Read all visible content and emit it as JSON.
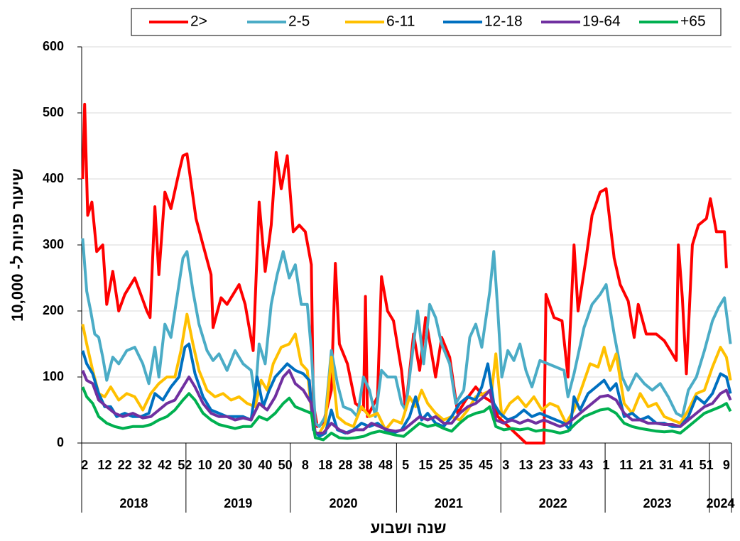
{
  "chart_data": {
    "type": "line",
    "y_label": "שיעור פניות ל- 10,000",
    "x_label": "שנה ושבוע",
    "ylim": [
      0,
      600
    ],
    "yticks": [
      0,
      100,
      200,
      300,
      400,
      500,
      600
    ],
    "grid": true,
    "xlim": [
      -0.5,
      323.5
    ],
    "xticks": [
      {
        "value": 1,
        "label": "2"
      },
      {
        "value": 11,
        "label": "12"
      },
      {
        "value": 21,
        "label": "22"
      },
      {
        "value": 31,
        "label": "32"
      },
      {
        "value": 41,
        "label": "42"
      },
      {
        "value": 51,
        "label": "52"
      },
      {
        "value": 61,
        "label": "10"
      },
      {
        "value": 71,
        "label": "20"
      },
      {
        "value": 81,
        "label": "30"
      },
      {
        "value": 91,
        "label": "40"
      },
      {
        "value": 101,
        "label": "50"
      },
      {
        "value": 111,
        "label": "8"
      },
      {
        "value": 121,
        "label": "18"
      },
      {
        "value": 131,
        "label": "28"
      },
      {
        "value": 141,
        "label": "38"
      },
      {
        "value": 151,
        "label": "48"
      },
      {
        "value": 161,
        "label": "5"
      },
      {
        "value": 171,
        "label": "15"
      },
      {
        "value": 181,
        "label": "25"
      },
      {
        "value": 191,
        "label": "35"
      },
      {
        "value": 201,
        "label": "45"
      },
      {
        "value": 211,
        "label": "3"
      },
      {
        "value": 221,
        "label": "13"
      },
      {
        "value": 231,
        "label": "23"
      },
      {
        "value": 241,
        "label": "33"
      },
      {
        "value": 251,
        "label": "43"
      },
      {
        "value": 261,
        "label": "1"
      },
      {
        "value": 271,
        "label": "11"
      },
      {
        "value": 281,
        "label": "21"
      },
      {
        "value": 291,
        "label": "31"
      },
      {
        "value": 301,
        "label": "41"
      },
      {
        "value": 311,
        "label": "51"
      },
      {
        "value": 321,
        "label": "9"
      }
    ],
    "year_groups": [
      {
        "label": "2018",
        "weeks": 52
      },
      {
        "label": "2019",
        "weeks": 52
      },
      {
        "label": "2020",
        "weeks": 53
      },
      {
        "label": "2021",
        "weeks": 52
      },
      {
        "label": "2022",
        "weeks": 52
      },
      {
        "label": "2023",
        "weeks": 52
      },
      {
        "label": "2024",
        "weeks": 11
      }
    ],
    "legend": "top-right",
    "series": [
      {
        "name": "2>",
        "color": "#ff0000",
        "x": [
          0,
          1,
          2.5,
          4.6,
          7,
          10,
          12,
          15,
          18,
          21,
          26,
          32,
          33.6,
          36,
          38,
          41,
          44,
          48,
          50,
          52,
          54,
          56.5,
          60,
          64,
          65,
          69,
          72,
          78,
          81,
          85,
          88,
          91,
          94,
          96.5,
          99,
          102,
          105,
          108,
          111,
          114,
          115,
          117,
          120,
          124,
          126,
          128,
          132,
          136,
          140,
          141,
          142,
          147,
          149,
          152,
          155,
          159,
          161,
          165,
          168,
          171,
          176,
          179,
          183,
          187,
          191,
          196,
          200,
          205,
          207,
          214,
          221,
          230,
          231,
          235,
          239,
          242,
          245,
          247,
          251,
          254,
          258,
          261,
          265,
          268,
          272,
          275,
          277,
          281,
          286,
          290,
          293,
          296,
          297,
          299,
          301,
          304,
          307,
          311,
          313,
          316,
          320,
          321
        ],
        "values": [
          400,
          513,
          345,
          365,
          290,
          300,
          210,
          260,
          200,
          225,
          250,
          200,
          190,
          358,
          255,
          380,
          355,
          410,
          435,
          438,
          395,
          340,
          300,
          255,
          175,
          220,
          210,
          240,
          210,
          140,
          365,
          260,
          330,
          440,
          385,
          435,
          320,
          330,
          320,
          270,
          60,
          25,
          30,
          80,
          272,
          150,
          120,
          60,
          50,
          222,
          40,
          70,
          252,
          200,
          185,
          110,
          50,
          165,
          110,
          190,
          100,
          160,
          130,
          45,
          65,
          85,
          70,
          60,
          40,
          20,
          0,
          0,
          225,
          190,
          185,
          100,
          300,
          200,
          280,
          345,
          380,
          385,
          280,
          240,
          215,
          160,
          210,
          165,
          165,
          155,
          140,
          125,
          300,
          220,
          105,
          300,
          330,
          340,
          370,
          320,
          320,
          265
        ]
      },
      {
        "name": "2-5",
        "color": "#4bacc6",
        "x": [
          0,
          2,
          4,
          6,
          8,
          10,
          12,
          15,
          18,
          22,
          26,
          30,
          33,
          36,
          38,
          41,
          44,
          47,
          50,
          52,
          55,
          58,
          62,
          65,
          68,
          72,
          76,
          80,
          84,
          86,
          88,
          91,
          94,
          97,
          100,
          103,
          106,
          109,
          112,
          114,
          116,
          118,
          121,
          124,
          127,
          130,
          134,
          137,
          140,
          143,
          146,
          149,
          152,
          156,
          159,
          161,
          163,
          167,
          170,
          173,
          176,
          179,
          183,
          186,
          190,
          193,
          196,
          199,
          203,
          205,
          207,
          209,
          212,
          215,
          218,
          221,
          224,
          228,
          232,
          236,
          240,
          242,
          245,
          250,
          254,
          258,
          261,
          265,
          269,
          272,
          276,
          280,
          284,
          288,
          292,
          296,
          299,
          302,
          306,
          310,
          314,
          317,
          320,
          323
        ],
        "values": [
          310,
          230,
          200,
          165,
          160,
          130,
          95,
          130,
          120,
          140,
          145,
          120,
          90,
          145,
          100,
          180,
          160,
          220,
          280,
          290,
          230,
          180,
          140,
          125,
          135,
          110,
          140,
          120,
          110,
          70,
          150,
          120,
          210,
          255,
          290,
          250,
          270,
          210,
          210,
          140,
          30,
          25,
          40,
          140,
          90,
          55,
          50,
          40,
          100,
          80,
          40,
          110,
          100,
          100,
          60,
          50,
          100,
          200,
          120,
          210,
          190,
          150,
          120,
          60,
          80,
          160,
          180,
          145,
          230,
          290,
          200,
          100,
          140,
          125,
          150,
          110,
          85,
          125,
          120,
          115,
          110,
          70,
          105,
          175,
          210,
          225,
          240,
          165,
          100,
          80,
          105,
          90,
          80,
          90,
          70,
          45,
          40,
          80,
          100,
          140,
          185,
          205,
          220,
          150
        ]
      },
      {
        "name": "6-11",
        "color": "#ffc000",
        "x": [
          0,
          2,
          5,
          8,
          11,
          14,
          18,
          22,
          26,
          30,
          34,
          38,
          42,
          46,
          49,
          52,
          55,
          58,
          62,
          66,
          70,
          74,
          78,
          82,
          86,
          89,
          92,
          95,
          99,
          103,
          106,
          109,
          112,
          114,
          116,
          118,
          121,
          124,
          127,
          131,
          135,
          139,
          143,
          147,
          151,
          155,
          159,
          163,
          166,
          169,
          172,
          176,
          180,
          184,
          188,
          192,
          196,
          200,
          204,
          206,
          209,
          213,
          217,
          221,
          225,
          229,
          233,
          237,
          241,
          245,
          249,
          253,
          257,
          260,
          263,
          266,
          270,
          274,
          278,
          282,
          286,
          290,
          294,
          298,
          302,
          306,
          310,
          314,
          318,
          321,
          323
        ],
        "values": [
          180,
          150,
          110,
          75,
          70,
          85,
          65,
          75,
          70,
          50,
          75,
          90,
          100,
          100,
          140,
          195,
          150,
          110,
          80,
          70,
          75,
          65,
          70,
          60,
          55,
          95,
          80,
          120,
          145,
          150,
          165,
          120,
          110,
          50,
          15,
          15,
          30,
          130,
          40,
          30,
          25,
          55,
          40,
          45,
          20,
          35,
          30,
          70,
          55,
          80,
          60,
          45,
          35,
          40,
          35,
          50,
          70,
          75,
          80,
          135,
          40,
          60,
          70,
          55,
          70,
          50,
          60,
          55,
          30,
          50,
          85,
          120,
          115,
          145,
          110,
          135,
          60,
          45,
          75,
          55,
          60,
          40,
          35,
          30,
          50,
          75,
          80,
          115,
          145,
          130,
          95
        ]
      },
      {
        "name": "12-18",
        "color": "#0070c0",
        "x": [
          0,
          2,
          5,
          8,
          11,
          14,
          17,
          21,
          25,
          29,
          33,
          36,
          40,
          44,
          48,
          51,
          53,
          56,
          60,
          64,
          68,
          72,
          76,
          80,
          84,
          87,
          90,
          93,
          96,
          99,
          102,
          106,
          110,
          113,
          115,
          118,
          121,
          124,
          127,
          131,
          135,
          139,
          143,
          147,
          151,
          155,
          159,
          163,
          166,
          169,
          172,
          176,
          180,
          184,
          188,
          192,
          196,
          199,
          202,
          205,
          208,
          212,
          216,
          220,
          224,
          228,
          232,
          236,
          240,
          243,
          245,
          248,
          252,
          256,
          260,
          263,
          266,
          270,
          274,
          278,
          282,
          286,
          290,
          294,
          298,
          302,
          306,
          310,
          314,
          318,
          321,
          323
        ],
        "values": [
          140,
          120,
          105,
          75,
          55,
          55,
          40,
          45,
          40,
          40,
          45,
          75,
          65,
          85,
          100,
          145,
          150,
          105,
          70,
          50,
          45,
          40,
          40,
          40,
          35,
          100,
          55,
          80,
          100,
          110,
          120,
          110,
          105,
          95,
          20,
          10,
          15,
          50,
          20,
          15,
          20,
          30,
          25,
          30,
          20,
          15,
          20,
          40,
          70,
          35,
          45,
          30,
          25,
          40,
          60,
          70,
          65,
          85,
          120,
          60,
          45,
          35,
          40,
          50,
          40,
          45,
          40,
          35,
          30,
          20,
          70,
          50,
          75,
          85,
          95,
          80,
          90,
          40,
          45,
          35,
          40,
          30,
          30,
          25,
          25,
          40,
          70,
          60,
          75,
          105,
          100,
          75
        ]
      },
      {
        "name": "19-64",
        "color": "#7030a0",
        "x": [
          0,
          2,
          5,
          8,
          12,
          16,
          20,
          25,
          30,
          34,
          38,
          42,
          46,
          50,
          53,
          56,
          60,
          64,
          68,
          72,
          76,
          80,
          84,
          88,
          92,
          96,
          100,
          103,
          106,
          110,
          114,
          116,
          120,
          124,
          128,
          132,
          136,
          140,
          144,
          148,
          152,
          156,
          160,
          164,
          168,
          172,
          176,
          180,
          184,
          188,
          192,
          196,
          200,
          203,
          206,
          210,
          214,
          218,
          222,
          226,
          230,
          234,
          238,
          242,
          246,
          250,
          254,
          258,
          262,
          266,
          270,
          274,
          278,
          282,
          286,
          290,
          294,
          298,
          302,
          306,
          310,
          314,
          318,
          321,
          323
        ],
        "values": [
          110,
          95,
          90,
          65,
          55,
          45,
          40,
          45,
          38,
          40,
          50,
          60,
          65,
          85,
          100,
          85,
          60,
          45,
          40,
          40,
          35,
          38,
          35,
          60,
          50,
          70,
          100,
          110,
          90,
          80,
          60,
          15,
          15,
          30,
          20,
          15,
          20,
          20,
          30,
          25,
          20,
          18,
          20,
          30,
          40,
          35,
          40,
          30,
          30,
          45,
          55,
          60,
          70,
          80,
          35,
          30,
          35,
          30,
          35,
          30,
          35,
          30,
          25,
          30,
          40,
          50,
          60,
          70,
          72,
          65,
          45,
          35,
          35,
          30,
          30,
          28,
          28,
          25,
          35,
          45,
          55,
          60,
          75,
          80,
          65
        ]
      },
      {
        "name": "+65",
        "color": "#00b050",
        "x": [
          0,
          2,
          5,
          8,
          12,
          16,
          20,
          25,
          30,
          34,
          38,
          42,
          46,
          50,
          53,
          56,
          60,
          64,
          68,
          72,
          76,
          80,
          84,
          88,
          92,
          96,
          100,
          103,
          106,
          110,
          114,
          116,
          120,
          124,
          128,
          132,
          136,
          140,
          144,
          148,
          152,
          156,
          160,
          164,
          168,
          172,
          176,
          180,
          184,
          188,
          192,
          196,
          200,
          203,
          206,
          210,
          214,
          218,
          222,
          226,
          230,
          234,
          238,
          242,
          246,
          250,
          254,
          258,
          262,
          266,
          270,
          274,
          278,
          282,
          286,
          290,
          294,
          298,
          302,
          306,
          310,
          314,
          318,
          321,
          323
        ],
        "values": [
          85,
          70,
          60,
          40,
          30,
          25,
          22,
          25,
          25,
          28,
          35,
          40,
          50,
          65,
          75,
          65,
          45,
          35,
          28,
          25,
          22,
          25,
          25,
          40,
          35,
          45,
          60,
          68,
          55,
          50,
          45,
          8,
          5,
          15,
          8,
          7,
          8,
          10,
          15,
          18,
          15,
          12,
          10,
          20,
          30,
          25,
          28,
          22,
          18,
          30,
          40,
          45,
          48,
          55,
          25,
          20,
          22,
          20,
          22,
          18,
          20,
          18,
          15,
          18,
          30,
          40,
          45,
          50,
          52,
          45,
          30,
          25,
          22,
          20,
          18,
          17,
          18,
          15,
          25,
          35,
          45,
          50,
          55,
          60,
          48
        ]
      }
    ]
  }
}
